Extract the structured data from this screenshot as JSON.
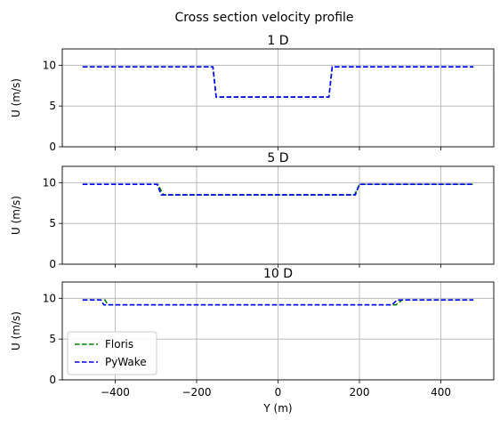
{
  "figure": {
    "suptitle": "Cross section velocity profile"
  },
  "chart_data": [
    {
      "type": "line",
      "title": "1 D",
      "xlabel": "",
      "ylabel": "U (m/s)",
      "xlim": [
        -530,
        530
      ],
      "ylim": [
        0,
        12
      ],
      "xticks": [
        -400,
        -200,
        0,
        200,
        400
      ],
      "xtick_labels_visible": false,
      "yticks": [
        0,
        5,
        10
      ],
      "grid": true,
      "legend": null,
      "series": [
        {
          "name": "Floris",
          "color": "#008000",
          "style": "dashed",
          "x": [
            -480,
            -160,
            -152,
            125,
            133,
            480
          ],
          "y": [
            9.8,
            9.8,
            6.1,
            6.1,
            9.8,
            9.8
          ]
        },
        {
          "name": "PyWake",
          "color": "#0000ff",
          "style": "dashed",
          "x": [
            -480,
            -160,
            -152,
            125,
            133,
            480
          ],
          "y": [
            9.8,
            9.8,
            6.1,
            6.1,
            9.8,
            9.8
          ]
        }
      ]
    },
    {
      "type": "line",
      "title": "5 D",
      "xlabel": "",
      "ylabel": "U (m/s)",
      "xlim": [
        -530,
        530
      ],
      "ylim": [
        0,
        12
      ],
      "xticks": [
        -400,
        -200,
        0,
        200,
        400
      ],
      "xtick_labels_visible": false,
      "yticks": [
        0,
        5,
        10
      ],
      "grid": true,
      "legend": null,
      "series": [
        {
          "name": "Floris",
          "color": "#008000",
          "style": "dashed",
          "x": [
            -480,
            -295,
            -282,
            188,
            200,
            480
          ],
          "y": [
            9.8,
            9.8,
            8.5,
            8.5,
            9.8,
            9.8
          ]
        },
        {
          "name": "PyWake",
          "color": "#0000ff",
          "style": "dashed",
          "x": [
            -480,
            -297,
            -287,
            190,
            200,
            480
          ],
          "y": [
            9.8,
            9.8,
            8.5,
            8.5,
            9.8,
            9.8
          ]
        }
      ]
    },
    {
      "type": "line",
      "title": "10 D",
      "xlabel": "Y (m)",
      "ylabel": "U (m/s)",
      "xlim": [
        -530,
        530
      ],
      "ylim": [
        0,
        12
      ],
      "xticks": [
        -400,
        -200,
        0,
        200,
        400
      ],
      "xtick_labels": [
        "−400",
        "−200",
        "0",
        "200",
        "400"
      ],
      "xtick_labels_visible": true,
      "yticks": [
        0,
        5,
        10
      ],
      "grid": true,
      "legend": {
        "position": "lower-left",
        "entries": [
          "Floris",
          "PyWake"
        ]
      },
      "series": [
        {
          "name": "Floris",
          "color": "#008000",
          "style": "dashed",
          "x": [
            -480,
            -425,
            -418,
            290,
            305,
            480
          ],
          "y": [
            9.8,
            9.8,
            9.2,
            9.2,
            9.8,
            9.8
          ]
        },
        {
          "name": "PyWake",
          "color": "#0000ff",
          "style": "dashed",
          "x": [
            -480,
            -435,
            -428,
            280,
            292,
            480
          ],
          "y": [
            9.8,
            9.8,
            9.2,
            9.2,
            9.8,
            9.8
          ]
        }
      ]
    }
  ]
}
